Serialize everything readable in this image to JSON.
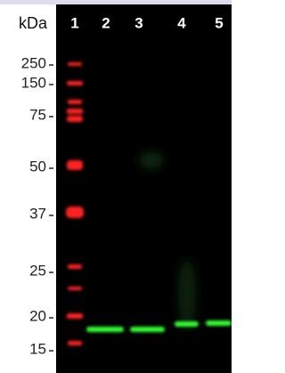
{
  "header": {
    "unit": "kDa",
    "lanes": [
      "1",
      "2",
      "3",
      "4",
      "5"
    ]
  },
  "markers": [
    "250",
    "150",
    "75",
    "50",
    "37",
    "25",
    "20",
    "15"
  ]
}
